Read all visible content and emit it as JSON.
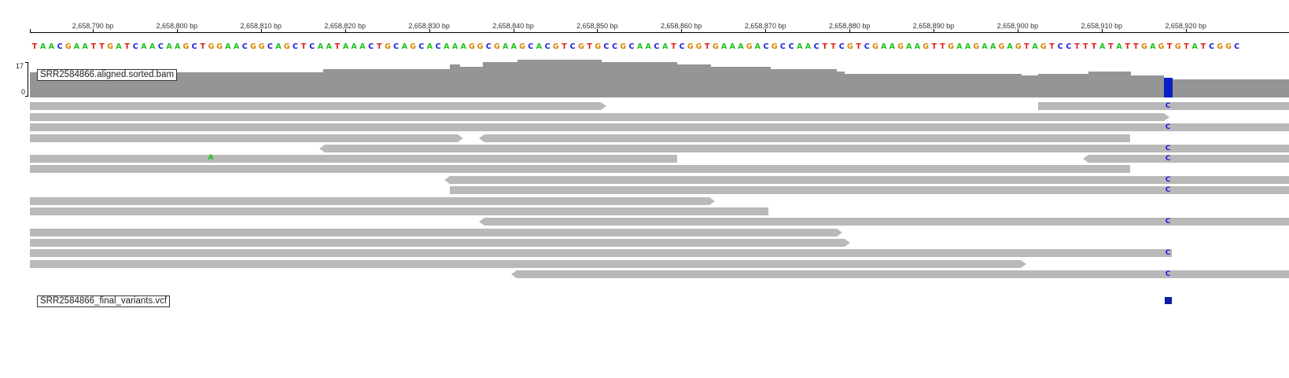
{
  "ruler": {
    "labels": [
      "2,658,790 bp",
      "2,658,800 bp",
      "2,658,810 bp",
      "2,658,820 bp",
      "2,658,830 bp",
      "2,658,840 bp",
      "2,658,850 bp",
      "2,658,860 bp",
      "2,658,870 bp",
      "2,658,880 bp",
      "2,658,890 bp",
      "2,658,900 bp",
      "2,658,910 bp",
      "2,658,920 bp"
    ]
  },
  "sequence": "TAACGAATTGATCAACAAGCTGGAACGGCAGCTCAATAAACTGCAGCACAAAGGCGAAGCACGTCGTGCCGCAACATCGGTGAAAGACGCCAACTTCGTCGAAGAAGTTGAAGAAGAGTAGTCCTTTATATTGAGTGTATCGGC",
  "base_colors": {
    "A": "#1fc21f",
    "C": "#1b1be6",
    "G": "#d98500",
    "T": "#e41a1a"
  },
  "coverage": {
    "track_label": "SRR2584866.aligned.sorted.bam",
    "scale_max": "17",
    "scale_min": "0",
    "bar_color": "#959595",
    "snp_color": "#0a1ec8"
  },
  "reads": {
    "color": "#b9b9b9",
    "mismatch_A": "A",
    "mismatch_C": "C"
  },
  "variants": {
    "track_label": "SRR2584866_final_variants.vcf",
    "marker_color": "#0a1ea8"
  }
}
